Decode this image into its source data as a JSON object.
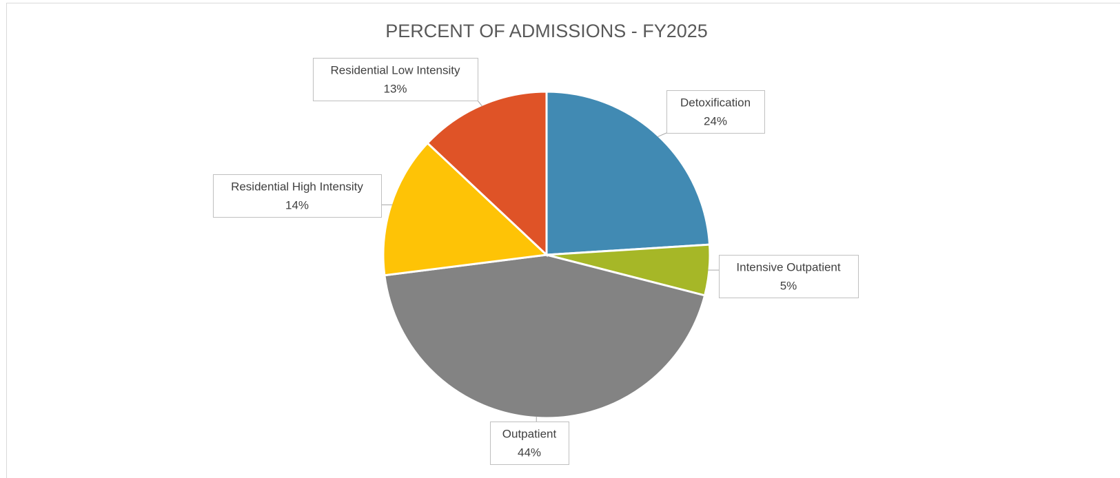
{
  "chart_data": {
    "type": "pie",
    "title": "PERCENT OF ADMISSIONS - FY2025",
    "categories": [
      "Detoxification",
      "Intensive Outpatient",
      "Outpatient",
      "Residential High Intensity",
      "Residential Low Intensity"
    ],
    "values": [
      24,
      5,
      44,
      14,
      13
    ],
    "value_labels": [
      "24%",
      "5%",
      "44%",
      "14%",
      "13%"
    ],
    "colors": [
      "#418ab3",
      "#a6b727",
      "#838383",
      "#fec306",
      "#df5327"
    ]
  }
}
